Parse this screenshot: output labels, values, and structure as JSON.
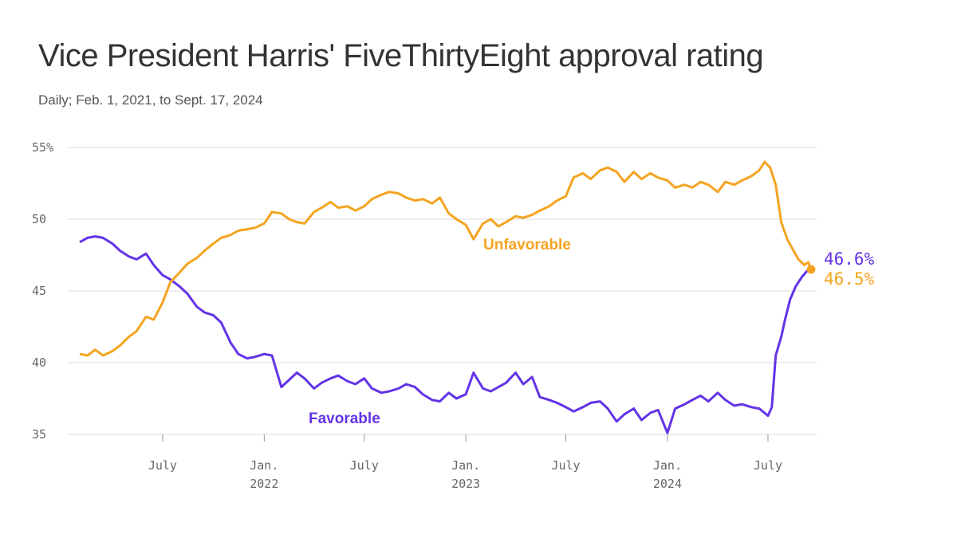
{
  "title": "Vice President Harris' FiveThirtyEight approval rating",
  "subtitle": "Daily; Feb. 1, 2021, to Sept. 17, 2024",
  "colors": {
    "favorable": "#6333e8",
    "unfavorable": "#f4a420",
    "grid": "#dddddd"
  },
  "chart_data": {
    "type": "line",
    "title": "Vice President Harris' FiveThirtyEight approval rating",
    "subtitle": "Daily; Feb. 1, 2021, to Sept. 17, 2024",
    "xlabel": "",
    "ylabel": "",
    "x_range": [
      "2021-02-01",
      "2024-09-17"
    ],
    "ylim": [
      35,
      55
    ],
    "y_ticks": [
      {
        "value": 35,
        "label": "35"
      },
      {
        "value": 40,
        "label": "40"
      },
      {
        "value": 45,
        "label": "45"
      },
      {
        "value": 50,
        "label": "50"
      },
      {
        "value": 55,
        "label": "55%"
      }
    ],
    "x_ticks": [
      {
        "date": "2021-07-01",
        "label": "July",
        "year": ""
      },
      {
        "date": "2022-01-01",
        "label": "Jan.",
        "year": "2022"
      },
      {
        "date": "2022-07-01",
        "label": "July",
        "year": ""
      },
      {
        "date": "2023-01-01",
        "label": "Jan.",
        "year": "2023"
      },
      {
        "date": "2023-07-01",
        "label": "July",
        "year": ""
      },
      {
        "date": "2024-01-01",
        "label": "Jan.",
        "year": "2024"
      },
      {
        "date": "2024-07-01",
        "label": "July",
        "year": ""
      }
    ],
    "grid": true,
    "legend": "direct labels on lines",
    "series": [
      {
        "name": "Favorable",
        "color": "#6333e8",
        "end_label": "46.6%",
        "points": [
          [
            "2021-02-01",
            48.4
          ],
          [
            "2021-02-15",
            48.7
          ],
          [
            "2021-03-01",
            48.8
          ],
          [
            "2021-03-15",
            48.7
          ],
          [
            "2021-04-01",
            48.3
          ],
          [
            "2021-04-15",
            47.8
          ],
          [
            "2021-05-01",
            47.4
          ],
          [
            "2021-05-15",
            47.2
          ],
          [
            "2021-06-01",
            47.6
          ],
          [
            "2021-06-15",
            46.8
          ],
          [
            "2021-07-01",
            46.1
          ],
          [
            "2021-07-15",
            45.8
          ],
          [
            "2021-08-01",
            45.3
          ],
          [
            "2021-08-15",
            44.8
          ],
          [
            "2021-09-01",
            43.9
          ],
          [
            "2021-09-15",
            43.5
          ],
          [
            "2021-10-01",
            43.3
          ],
          [
            "2021-10-15",
            42.8
          ],
          [
            "2021-11-01",
            41.4
          ],
          [
            "2021-11-15",
            40.6
          ],
          [
            "2021-12-01",
            40.3
          ],
          [
            "2021-12-15",
            40.4
          ],
          [
            "2022-01-01",
            40.6
          ],
          [
            "2022-01-15",
            40.5
          ],
          [
            "2022-02-01",
            38.3
          ],
          [
            "2022-02-15",
            38.8
          ],
          [
            "2022-03-01",
            39.3
          ],
          [
            "2022-03-15",
            38.9
          ],
          [
            "2022-04-01",
            38.2
          ],
          [
            "2022-04-15",
            38.6
          ],
          [
            "2022-05-01",
            38.9
          ],
          [
            "2022-05-15",
            39.1
          ],
          [
            "2022-06-01",
            38.7
          ],
          [
            "2022-06-15",
            38.5
          ],
          [
            "2022-07-01",
            38.9
          ],
          [
            "2022-07-15",
            38.2
          ],
          [
            "2022-08-01",
            37.9
          ],
          [
            "2022-08-15",
            38.0
          ],
          [
            "2022-09-01",
            38.2
          ],
          [
            "2022-09-15",
            38.5
          ],
          [
            "2022-10-01",
            38.3
          ],
          [
            "2022-10-15",
            37.8
          ],
          [
            "2022-11-01",
            37.4
          ],
          [
            "2022-11-15",
            37.3
          ],
          [
            "2022-12-01",
            37.9
          ],
          [
            "2022-12-15",
            37.5
          ],
          [
            "2023-01-01",
            37.8
          ],
          [
            "2023-01-15",
            39.3
          ],
          [
            "2023-02-01",
            38.2
          ],
          [
            "2023-02-15",
            38.0
          ],
          [
            "2023-03-01",
            38.3
          ],
          [
            "2023-03-15",
            38.6
          ],
          [
            "2023-04-01",
            39.3
          ],
          [
            "2023-04-15",
            38.5
          ],
          [
            "2023-05-01",
            39.0
          ],
          [
            "2023-05-15",
            37.6
          ],
          [
            "2023-06-01",
            37.4
          ],
          [
            "2023-06-15",
            37.2
          ],
          [
            "2023-07-01",
            36.9
          ],
          [
            "2023-07-15",
            36.6
          ],
          [
            "2023-08-01",
            36.9
          ],
          [
            "2023-08-15",
            37.2
          ],
          [
            "2023-09-01",
            37.3
          ],
          [
            "2023-09-15",
            36.8
          ],
          [
            "2023-10-01",
            35.9
          ],
          [
            "2023-10-15",
            36.4
          ],
          [
            "2023-11-01",
            36.8
          ],
          [
            "2023-11-15",
            36.0
          ],
          [
            "2023-12-01",
            36.5
          ],
          [
            "2023-12-15",
            36.7
          ],
          [
            "2024-01-01",
            35.1
          ],
          [
            "2024-01-15",
            36.8
          ],
          [
            "2024-02-01",
            37.1
          ],
          [
            "2024-02-15",
            37.4
          ],
          [
            "2024-03-01",
            37.7
          ],
          [
            "2024-03-15",
            37.3
          ],
          [
            "2024-04-01",
            37.9
          ],
          [
            "2024-04-15",
            37.4
          ],
          [
            "2024-05-01",
            37.0
          ],
          [
            "2024-05-15",
            37.1
          ],
          [
            "2024-06-01",
            36.9
          ],
          [
            "2024-06-15",
            36.8
          ],
          [
            "2024-07-01",
            36.3
          ],
          [
            "2024-07-08",
            36.9
          ],
          [
            "2024-07-15",
            40.5
          ],
          [
            "2024-07-25",
            41.8
          ],
          [
            "2024-08-01",
            43.0
          ],
          [
            "2024-08-10",
            44.4
          ],
          [
            "2024-08-20",
            45.3
          ],
          [
            "2024-09-01",
            46.0
          ],
          [
            "2024-09-10",
            46.4
          ],
          [
            "2024-09-17",
            46.6
          ]
        ]
      },
      {
        "name": "Unfavorable",
        "color": "#f4a420",
        "end_label": "46.5%",
        "points": [
          [
            "2021-02-01",
            40.6
          ],
          [
            "2021-02-15",
            40.5
          ],
          [
            "2021-03-01",
            40.9
          ],
          [
            "2021-03-15",
            40.5
          ],
          [
            "2021-04-01",
            40.8
          ],
          [
            "2021-04-15",
            41.2
          ],
          [
            "2021-05-01",
            41.8
          ],
          [
            "2021-05-15",
            42.2
          ],
          [
            "2021-06-01",
            43.2
          ],
          [
            "2021-06-15",
            43.0
          ],
          [
            "2021-07-01",
            44.2
          ],
          [
            "2021-07-15",
            45.6
          ],
          [
            "2021-08-01",
            46.3
          ],
          [
            "2021-08-15",
            46.9
          ],
          [
            "2021-09-01",
            47.3
          ],
          [
            "2021-09-15",
            47.8
          ],
          [
            "2021-10-01",
            48.3
          ],
          [
            "2021-10-15",
            48.7
          ],
          [
            "2021-11-01",
            48.9
          ],
          [
            "2021-11-15",
            49.2
          ],
          [
            "2021-12-01",
            49.3
          ],
          [
            "2021-12-15",
            49.4
          ],
          [
            "2022-01-01",
            49.7
          ],
          [
            "2022-01-15",
            50.5
          ],
          [
            "2022-02-01",
            50.4
          ],
          [
            "2022-02-15",
            50.0
          ],
          [
            "2022-03-01",
            49.8
          ],
          [
            "2022-03-15",
            49.7
          ],
          [
            "2022-04-01",
            50.5
          ],
          [
            "2022-04-15",
            50.8
          ],
          [
            "2022-05-01",
            51.2
          ],
          [
            "2022-05-15",
            50.8
          ],
          [
            "2022-06-01",
            50.9
          ],
          [
            "2022-06-15",
            50.6
          ],
          [
            "2022-07-01",
            50.9
          ],
          [
            "2022-07-15",
            51.4
          ],
          [
            "2022-08-01",
            51.7
          ],
          [
            "2022-08-15",
            51.9
          ],
          [
            "2022-09-01",
            51.8
          ],
          [
            "2022-09-15",
            51.5
          ],
          [
            "2022-10-01",
            51.3
          ],
          [
            "2022-10-15",
            51.4
          ],
          [
            "2022-11-01",
            51.1
          ],
          [
            "2022-11-15",
            51.5
          ],
          [
            "2022-12-01",
            50.4
          ],
          [
            "2022-12-15",
            50.0
          ],
          [
            "2023-01-01",
            49.6
          ],
          [
            "2023-01-15",
            48.6
          ],
          [
            "2023-02-01",
            49.7
          ],
          [
            "2023-02-15",
            50.0
          ],
          [
            "2023-03-01",
            49.5
          ],
          [
            "2023-03-15",
            49.8
          ],
          [
            "2023-04-01",
            50.2
          ],
          [
            "2023-04-15",
            50.1
          ],
          [
            "2023-05-01",
            50.3
          ],
          [
            "2023-05-15",
            50.6
          ],
          [
            "2023-06-01",
            50.9
          ],
          [
            "2023-06-15",
            51.3
          ],
          [
            "2023-07-01",
            51.6
          ],
          [
            "2023-07-15",
            52.9
          ],
          [
            "2023-08-01",
            53.2
          ],
          [
            "2023-08-15",
            52.8
          ],
          [
            "2023-09-01",
            53.4
          ],
          [
            "2023-09-15",
            53.6
          ],
          [
            "2023-10-01",
            53.3
          ],
          [
            "2023-10-15",
            52.6
          ],
          [
            "2023-11-01",
            53.3
          ],
          [
            "2023-11-15",
            52.8
          ],
          [
            "2023-12-01",
            53.2
          ],
          [
            "2023-12-15",
            52.9
          ],
          [
            "2024-01-01",
            52.7
          ],
          [
            "2024-01-15",
            52.2
          ],
          [
            "2024-02-01",
            52.4
          ],
          [
            "2024-02-15",
            52.2
          ],
          [
            "2024-03-01",
            52.6
          ],
          [
            "2024-03-15",
            52.4
          ],
          [
            "2024-04-01",
            51.9
          ],
          [
            "2024-04-15",
            52.6
          ],
          [
            "2024-05-01",
            52.4
          ],
          [
            "2024-05-15",
            52.7
          ],
          [
            "2024-06-01",
            53.0
          ],
          [
            "2024-06-15",
            53.4
          ],
          [
            "2024-06-25",
            54.0
          ],
          [
            "2024-07-05",
            53.6
          ],
          [
            "2024-07-15",
            52.4
          ],
          [
            "2024-07-25",
            49.8
          ],
          [
            "2024-08-05",
            48.6
          ],
          [
            "2024-08-15",
            47.9
          ],
          [
            "2024-08-25",
            47.2
          ],
          [
            "2024-09-05",
            46.8
          ],
          [
            "2024-09-12",
            47.0
          ],
          [
            "2024-09-17",
            46.5
          ]
        ]
      }
    ]
  },
  "labels": {
    "favorable": "Favorable",
    "unfavorable": "Unfavorable"
  }
}
